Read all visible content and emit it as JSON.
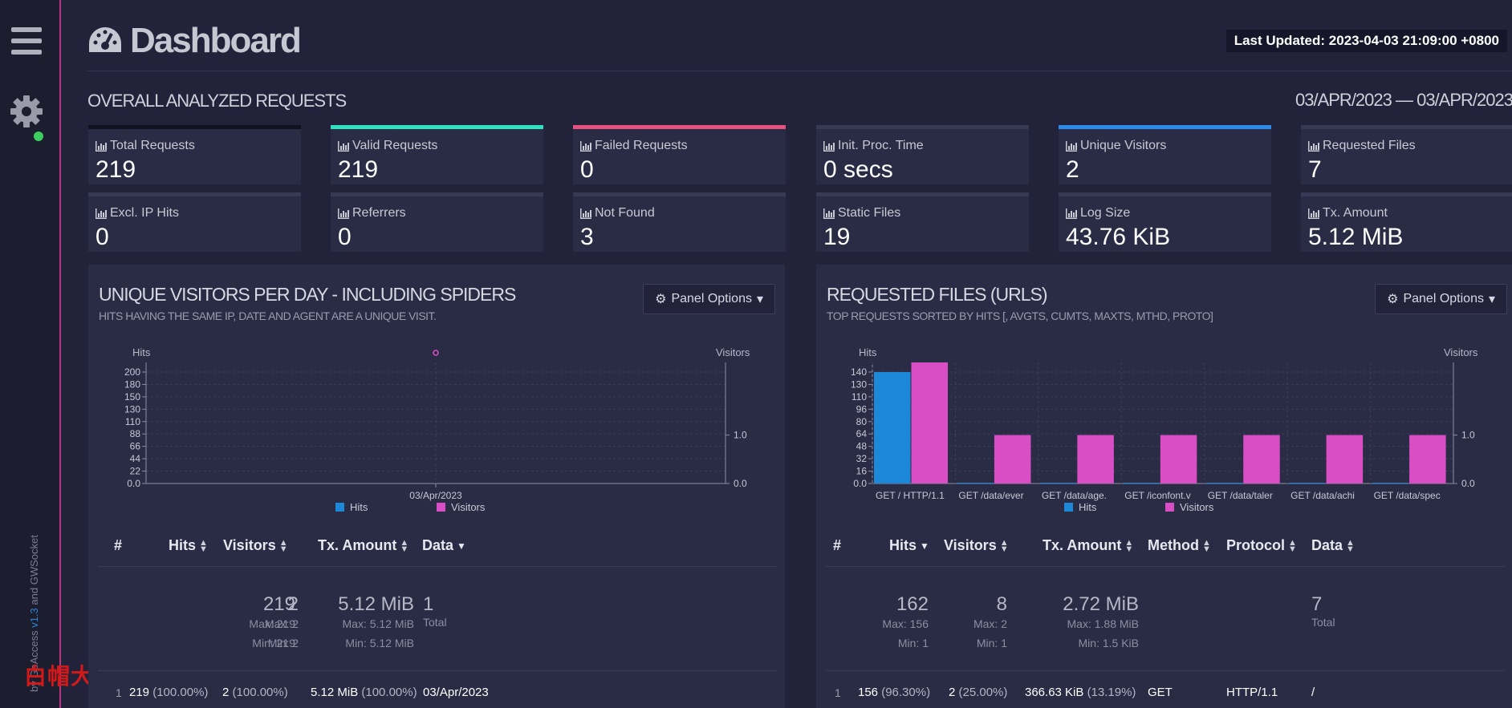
{
  "header": {
    "title": "Dashboard",
    "last_updated_label": "Last Updated:",
    "last_updated_value": "2023-04-03 21:09:00 +0800"
  },
  "sidebar": {
    "credits_prefix": "by ",
    "credits_app": "GoAccess",
    "credits_version": "v1.3",
    "credits_and": " and ",
    "credits_socket": "GWSocket",
    "watermark": "白帽大叔"
  },
  "overall": {
    "title": "OVERALL ANALYZED REQUESTS",
    "date_range": "03/APR/2023 — 03/APR/2023",
    "cards": [
      {
        "label": "Total Requests",
        "value": "219",
        "accent": "#111122"
      },
      {
        "label": "Valid Requests",
        "value": "219",
        "accent": "#2ee1c0"
      },
      {
        "label": "Failed Requests",
        "value": "0",
        "accent": "#e6527f"
      },
      {
        "label": "Init. Proc. Time",
        "value": "0 secs",
        "accent": "#373955"
      },
      {
        "label": "Unique Visitors",
        "value": "2",
        "accent": "#2c8ae8"
      },
      {
        "label": "Requested Files",
        "value": "7",
        "accent": "#373955"
      },
      {
        "label": "Excl. IP Hits",
        "value": "0",
        "accent": "#373955"
      },
      {
        "label": "Referrers",
        "value": "0",
        "accent": "#373955"
      },
      {
        "label": "Not Found",
        "value": "3",
        "accent": "#373955"
      },
      {
        "label": "Static Files",
        "value": "19",
        "accent": "#373955"
      },
      {
        "label": "Log Size",
        "value": "43.76 KiB",
        "accent": "#373955"
      },
      {
        "label": "Tx. Amount",
        "value": "5.12 MiB",
        "accent": "#373955"
      }
    ]
  },
  "panel_options_label": "Panel Options",
  "visitors_panel": {
    "title": "UNIQUE VISITORS PER DAY - INCLUDING SPIDERS",
    "subtitle": "HITS HAVING THE SAME IP, DATE AND AGENT ARE A UNIQUE VISIT.",
    "table": {
      "headers": [
        "#",
        "Hits",
        "Visitors",
        "Tx. Amount",
        "Data"
      ],
      "summary": {
        "hits": "219",
        "hits_max": "Max: 219",
        "hits_min": "Min: 219",
        "visitors": "2",
        "visitors_max": "Max: 2",
        "visitors_min": "Min: 2",
        "tx": "5.12 MiB",
        "tx_max": "Max: 5.12 MiB",
        "tx_min": "Min: 5.12 MiB",
        "data_count": "1",
        "data_total": "Total"
      },
      "row": {
        "num": "1",
        "hits": "219",
        "hits_pct": "(100.00%)",
        "visitors": "2",
        "visitors_pct": "(100.00%)",
        "tx": "5.12 MiB",
        "tx_pct": "(100.00%)",
        "data": "03/Apr/2023"
      }
    }
  },
  "files_panel": {
    "title": "REQUESTED FILES (URLS)",
    "subtitle": "TOP REQUESTS SORTED BY HITS [, AVGTS, CUMTS, MAXTS, MTHD, PROTO]",
    "table": {
      "headers": [
        "#",
        "Hits",
        "Visitors",
        "Tx. Amount",
        "Method",
        "Protocol",
        "Data"
      ],
      "summary": {
        "hits": "162",
        "hits_max": "Max: 156",
        "hits_min": "Min: 1",
        "visitors": "8",
        "visitors_max": "Max: 2",
        "visitors_min": "Min: 1",
        "tx": "2.72 MiB",
        "tx_max": "Max: 1.88 MiB",
        "tx_min": "Min: 1.5 KiB",
        "data_count": "7",
        "data_total": "Total"
      },
      "row": {
        "num": "1",
        "hits": "156",
        "hits_pct": "(96.30%)",
        "visitors": "2",
        "visitors_pct": "(25.00%)",
        "tx": "366.63 KiB",
        "tx_pct": "(13.19%)",
        "method": "GET",
        "protocol": "HTTP/1.1",
        "data": "/"
      }
    }
  },
  "chart_data": [
    {
      "type": "scatter",
      "ylabel": "Hits",
      "y2label": "Visitors",
      "categories": [
        "03/Apr/2023"
      ],
      "y_ticks": [
        "200",
        "180",
        "150",
        "130",
        "110",
        "88",
        "66",
        "44",
        "22",
        "0.0"
      ],
      "y2_ticks": [
        "1.0",
        "0.0"
      ],
      "ylim": [
        0,
        219
      ],
      "y2lim": [
        0,
        2
      ],
      "series": [
        {
          "name": "Hits",
          "values": [
            219
          ],
          "color": "#1e88d8"
        },
        {
          "name": "Visitors",
          "values": [
            2
          ],
          "color": "#d94ec4"
        }
      ],
      "legend": "bottom",
      "grid": true
    },
    {
      "type": "bar",
      "ylabel": "Hits",
      "y2label": "Visitors",
      "categories": [
        "GET / HTTP/1.1",
        "GET /data/ever",
        "GET /data/age.",
        "GET /iconfont.v",
        "GET /data/taler",
        "GET /data/achi",
        "GET /data/spec"
      ],
      "y_ticks": [
        "140",
        "130",
        "110",
        "96",
        "80",
        "64",
        "48",
        "32",
        "16",
        "0.0"
      ],
      "y2_ticks": [
        "1.0",
        "0.0"
      ],
      "ylim": [
        0,
        156
      ],
      "y2lim": [
        0,
        2
      ],
      "series": [
        {
          "name": "Hits",
          "values": [
            156,
            1,
            1,
            1,
            1,
            1,
            1
          ],
          "color": "#1e88d8"
        },
        {
          "name": "Visitors",
          "values": [
            2,
            1,
            1,
            1,
            1,
            1,
            1
          ],
          "color": "#d94ec4"
        }
      ],
      "legend": "bottom",
      "grid": true
    }
  ]
}
